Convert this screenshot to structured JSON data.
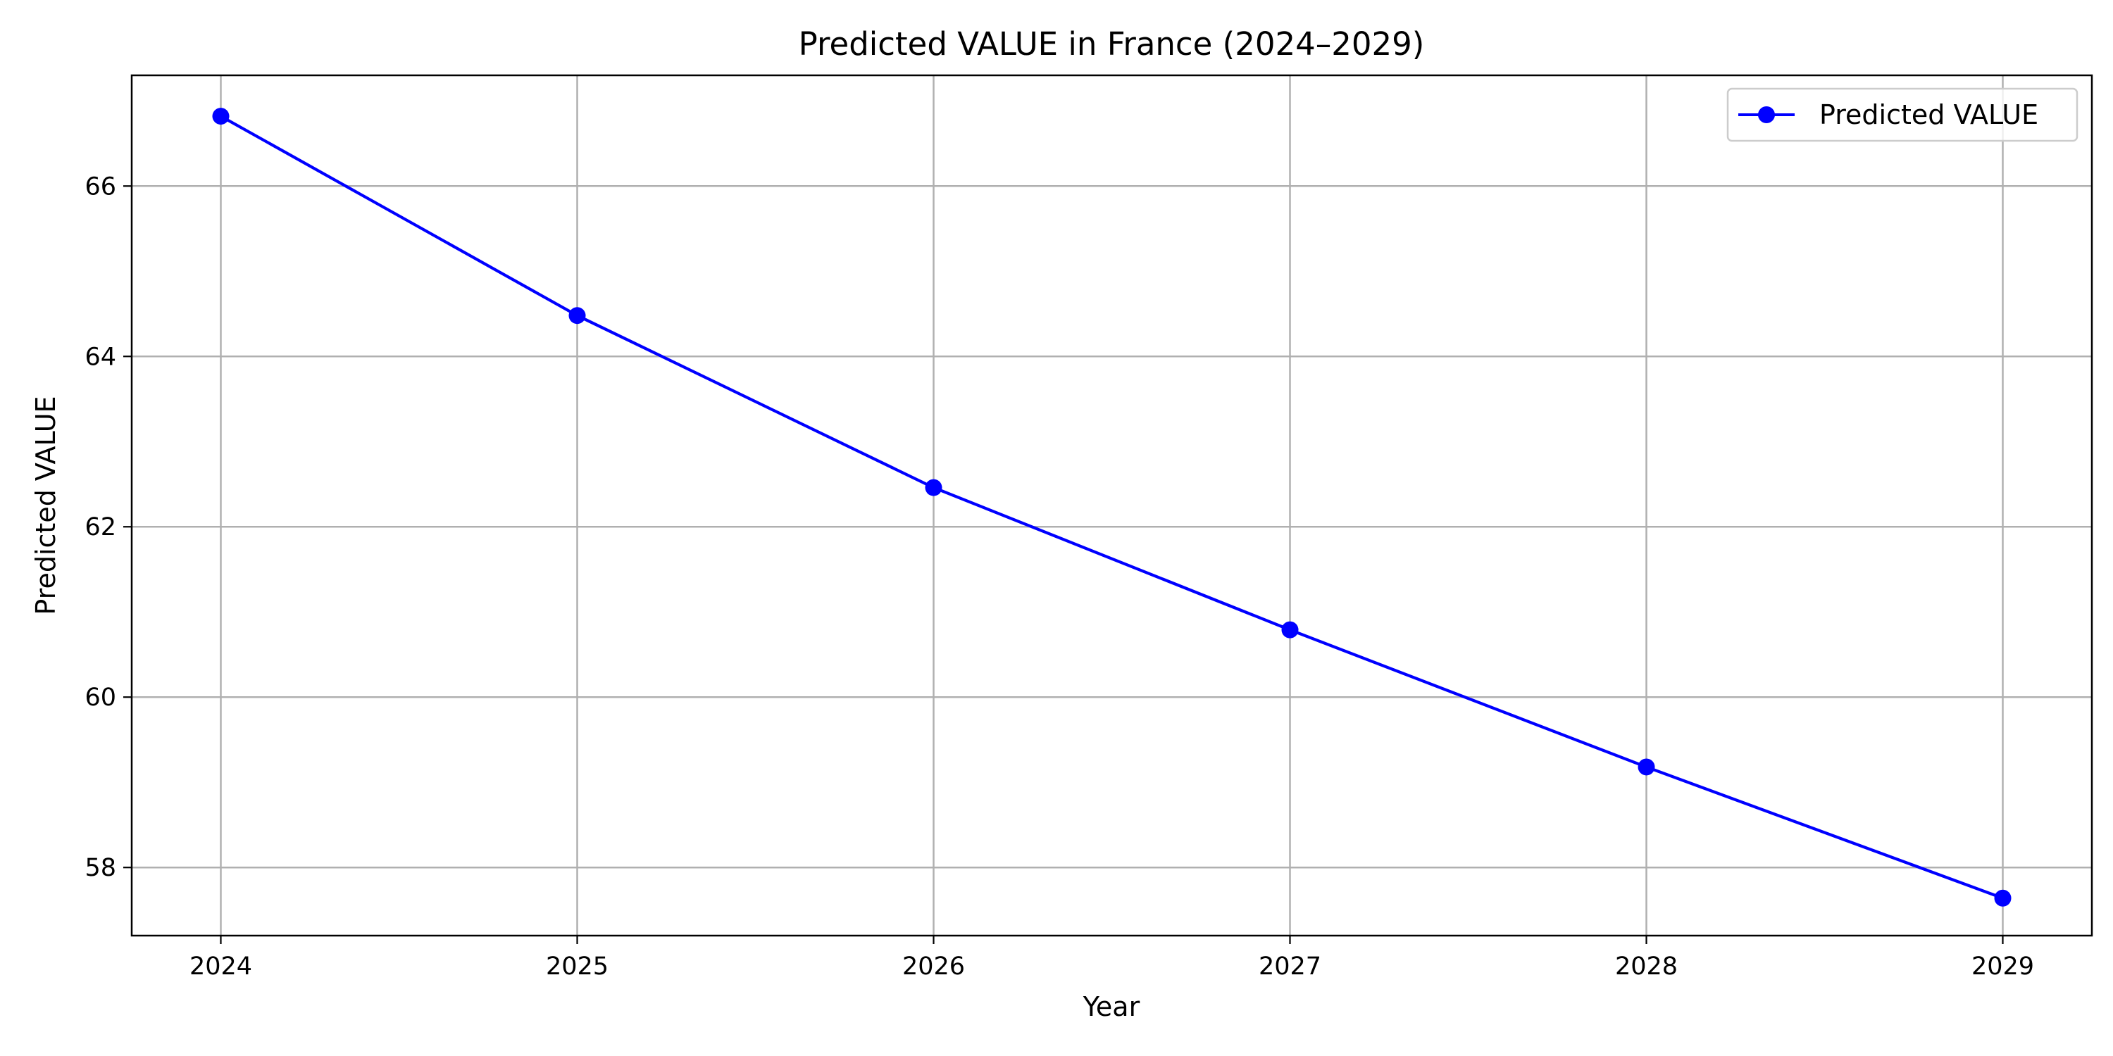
{
  "chart_data": {
    "type": "line",
    "title": "Predicted VALUE in France (2024–2029)",
    "xlabel": "Year",
    "ylabel": "Predicted VALUE",
    "x": [
      2024,
      2025,
      2026,
      2027,
      2028,
      2029
    ],
    "x_tick_labels": [
      "2024",
      "2025",
      "2026",
      "2027",
      "2028",
      "2029"
    ],
    "xlim": [
      2023.75,
      2029.25
    ],
    "y_ticks": [
      58,
      60,
      62,
      64,
      66
    ],
    "y_tick_labels": [
      "58",
      "60",
      "62",
      "64",
      "66"
    ],
    "ylim": [
      57.2,
      67.3
    ],
    "grid": true,
    "legend_position": "top-right",
    "series": [
      {
        "name": "Predicted VALUE",
        "color": "#0000ff",
        "marker": "circle",
        "values": [
          66.82,
          64.48,
          62.46,
          60.79,
          59.18,
          57.64
        ]
      }
    ]
  }
}
